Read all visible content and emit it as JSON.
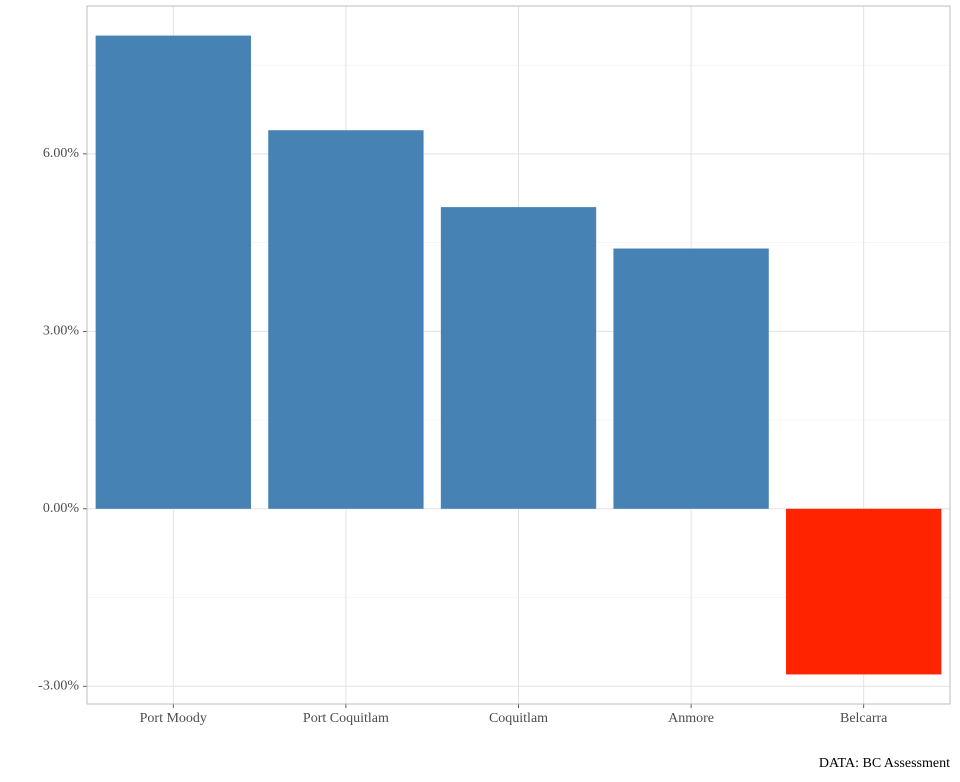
{
  "chart_data": {
    "type": "bar",
    "categories": [
      "Port Moody",
      "Port Coquitlam",
      "Coquitlam",
      "Anmore",
      "Belcarra"
    ],
    "values": [
      8.0,
      6.4,
      5.1,
      4.4,
      -2.8
    ],
    "colors": [
      "#4682b4",
      "#4682b4",
      "#4682b4",
      "#4682b4",
      "#ff2400"
    ],
    "ylim": [
      -3.3,
      8.5
    ],
    "yticks": [
      {
        "value": -3,
        "label": "-3.00%"
      },
      {
        "value": 0,
        "label": "0.00%"
      },
      {
        "value": 3,
        "label": "3.00%"
      },
      {
        "value": 6,
        "label": "6.00%"
      }
    ],
    "minor_yticks": [
      -1.5,
      1.5,
      4.5,
      7.5
    ],
    "grid": true,
    "caption": "DATA: BC Assessment"
  }
}
